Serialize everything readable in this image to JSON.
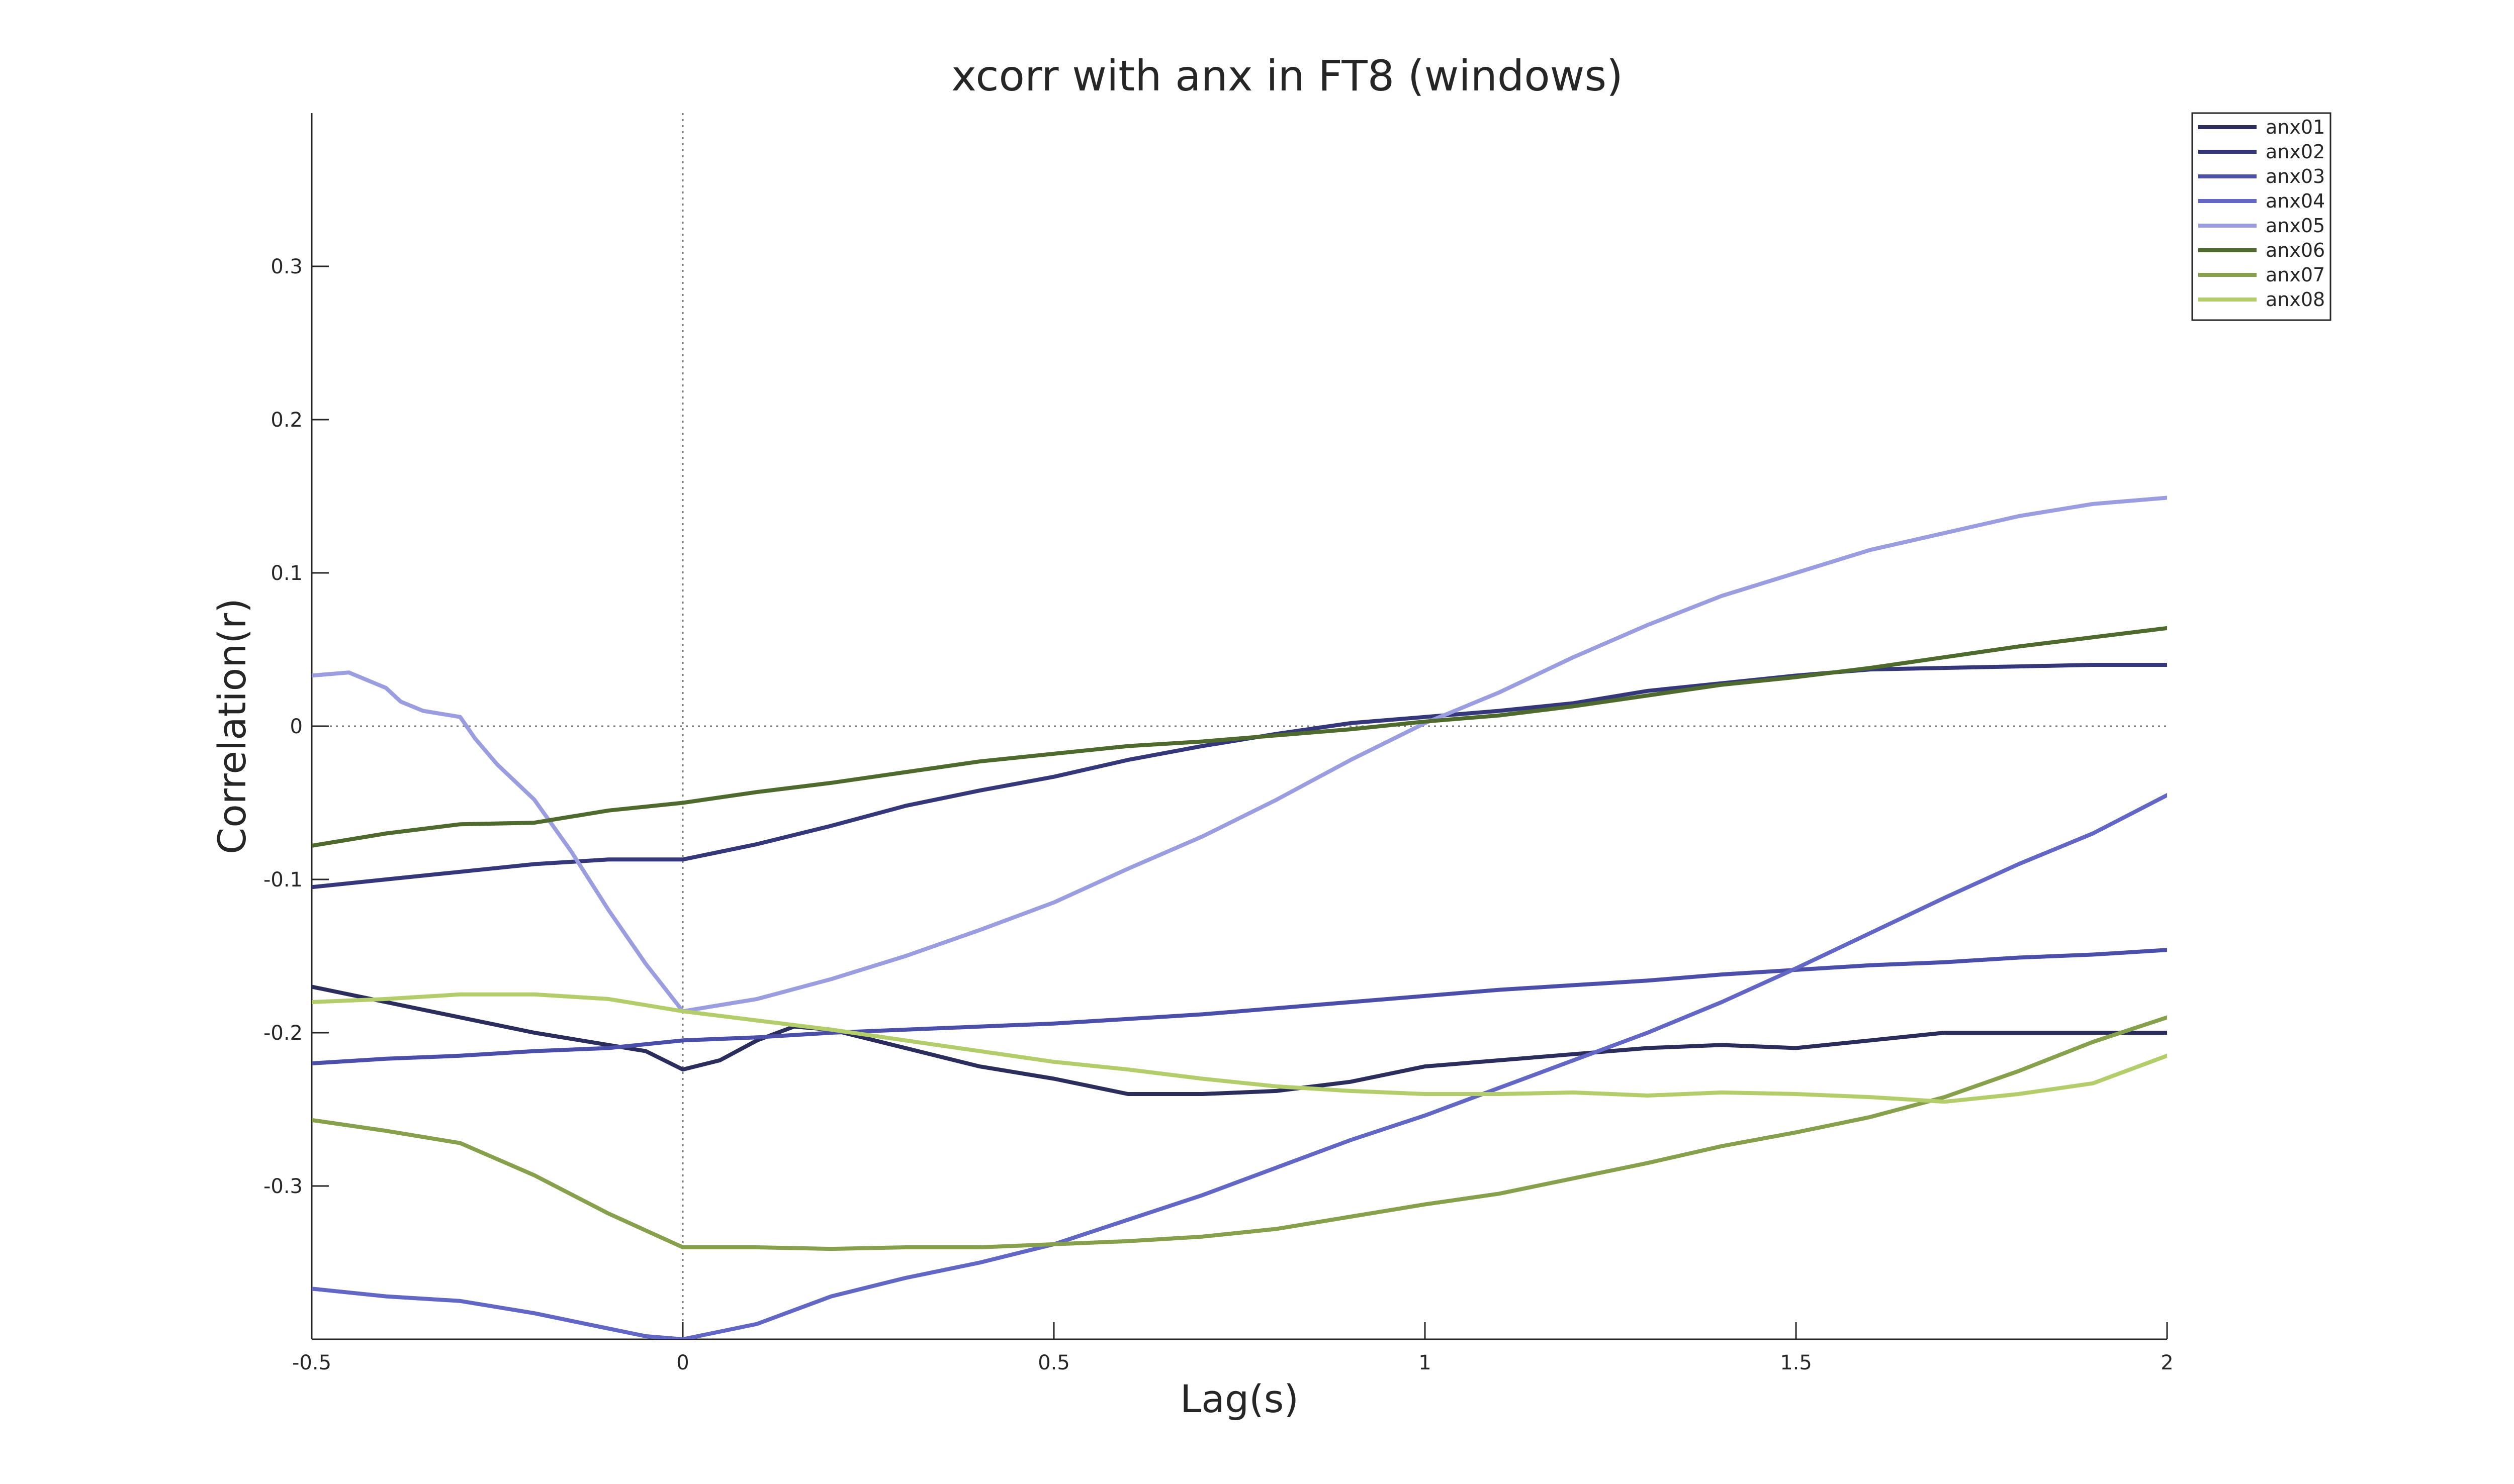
{
  "chart_data": {
    "type": "line",
    "title": "xcorr with anx in FT8 (windows)",
    "xlabel": "Lag(s)",
    "ylabel": "Correlation(r)",
    "xlim": [
      -0.5,
      2
    ],
    "ylim": [
      -0.4,
      0.4
    ],
    "xticks": [
      -0.5,
      0,
      0.5,
      1,
      1.5,
      2
    ],
    "xtick_labels": [
      "-0.5",
      "0",
      "0.5",
      "1",
      "1.5",
      "2"
    ],
    "yticks": [
      -0.3,
      -0.2,
      -0.1,
      0,
      0.1,
      0.2,
      0.3
    ],
    "ytick_labels": [
      "-0.3",
      "-0.2",
      "-0.1",
      "0",
      "0.1",
      "0.2",
      "0.3"
    ],
    "reference_lines": {
      "x": 0,
      "y": 0,
      "style": "dotted"
    },
    "grid": false,
    "legend_position": "top-right",
    "series": [
      {
        "name": "anx01",
        "color": "#2b2d5c",
        "points": [
          [
            -0.5,
            -0.17
          ],
          [
            -0.4,
            -0.18
          ],
          [
            -0.3,
            -0.19
          ],
          [
            -0.2,
            -0.2
          ],
          [
            -0.1,
            -0.208
          ],
          [
            -0.05,
            -0.212
          ],
          [
            0,
            -0.224
          ],
          [
            0.05,
            -0.218
          ],
          [
            0.1,
            -0.205
          ],
          [
            0.15,
            -0.196
          ],
          [
            0.2,
            -0.198
          ],
          [
            0.3,
            -0.21
          ],
          [
            0.4,
            -0.222
          ],
          [
            0.5,
            -0.23
          ],
          [
            0.6,
            -0.24
          ],
          [
            0.7,
            -0.24
          ],
          [
            0.8,
            -0.238
          ],
          [
            0.9,
            -0.232
          ],
          [
            1.0,
            -0.222
          ],
          [
            1.1,
            -0.218
          ],
          [
            1.2,
            -0.214
          ],
          [
            1.3,
            -0.21
          ],
          [
            1.4,
            -0.208
          ],
          [
            1.5,
            -0.21
          ],
          [
            1.6,
            -0.205
          ],
          [
            1.7,
            -0.2
          ],
          [
            1.8,
            -0.2
          ],
          [
            1.9,
            -0.2
          ],
          [
            2.0,
            -0.2
          ]
        ]
      },
      {
        "name": "anx02",
        "color": "#34387a",
        "points": [
          [
            -0.5,
            -0.105
          ],
          [
            -0.4,
            -0.1
          ],
          [
            -0.3,
            -0.095
          ],
          [
            -0.2,
            -0.09
          ],
          [
            -0.1,
            -0.087
          ],
          [
            0,
            -0.087
          ],
          [
            0.1,
            -0.077
          ],
          [
            0.2,
            -0.065
          ],
          [
            0.3,
            -0.052
          ],
          [
            0.4,
            -0.042
          ],
          [
            0.5,
            -0.033
          ],
          [
            0.6,
            -0.022
          ],
          [
            0.7,
            -0.013
          ],
          [
            0.8,
            -0.005
          ],
          [
            0.9,
            0.002
          ],
          [
            1.0,
            0.006
          ],
          [
            1.1,
            0.01
          ],
          [
            1.2,
            0.015
          ],
          [
            1.3,
            0.023
          ],
          [
            1.4,
            0.028
          ],
          [
            1.5,
            0.033
          ],
          [
            1.6,
            0.037
          ],
          [
            1.7,
            0.038
          ],
          [
            1.8,
            0.039
          ],
          [
            1.9,
            0.04
          ],
          [
            2.0,
            0.04
          ]
        ]
      },
      {
        "name": "anx03",
        "color": "#4b4faa",
        "points": [
          [
            -0.5,
            -0.22
          ],
          [
            -0.4,
            -0.217
          ],
          [
            -0.3,
            -0.215
          ],
          [
            -0.2,
            -0.212
          ],
          [
            -0.1,
            -0.21
          ],
          [
            0,
            -0.205
          ],
          [
            0.1,
            -0.203
          ],
          [
            0.2,
            -0.2
          ],
          [
            0.3,
            -0.198
          ],
          [
            0.4,
            -0.196
          ],
          [
            0.5,
            -0.194
          ],
          [
            0.6,
            -0.191
          ],
          [
            0.7,
            -0.188
          ],
          [
            0.8,
            -0.184
          ],
          [
            0.9,
            -0.18
          ],
          [
            1.0,
            -0.176
          ],
          [
            1.1,
            -0.172
          ],
          [
            1.2,
            -0.169
          ],
          [
            1.3,
            -0.166
          ],
          [
            1.4,
            -0.162
          ],
          [
            1.5,
            -0.159
          ],
          [
            1.6,
            -0.156
          ],
          [
            1.7,
            -0.154
          ],
          [
            1.8,
            -0.151
          ],
          [
            1.9,
            -0.149
          ],
          [
            2.0,
            -0.146
          ]
        ]
      },
      {
        "name": "anx04",
        "color": "#6266c4",
        "points": [
          [
            -0.5,
            -0.367
          ],
          [
            -0.4,
            -0.372
          ],
          [
            -0.3,
            -0.375
          ],
          [
            -0.2,
            -0.383
          ],
          [
            -0.1,
            -0.393
          ],
          [
            -0.05,
            -0.398
          ],
          [
            0,
            -0.4
          ],
          [
            0.1,
            -0.39
          ],
          [
            0.2,
            -0.372
          ],
          [
            0.3,
            -0.36
          ],
          [
            0.4,
            -0.35
          ],
          [
            0.5,
            -0.338
          ],
          [
            0.6,
            -0.322
          ],
          [
            0.7,
            -0.306
          ],
          [
            0.8,
            -0.288
          ],
          [
            0.9,
            -0.27
          ],
          [
            1.0,
            -0.254
          ],
          [
            1.1,
            -0.236
          ],
          [
            1.2,
            -0.218
          ],
          [
            1.3,
            -0.2
          ],
          [
            1.4,
            -0.18
          ],
          [
            1.5,
            -0.158
          ],
          [
            1.6,
            -0.135
          ],
          [
            1.7,
            -0.112
          ],
          [
            1.8,
            -0.09
          ],
          [
            1.9,
            -0.07
          ],
          [
            2.0,
            -0.045
          ]
        ]
      },
      {
        "name": "anx05",
        "color": "#9a9ee0",
        "points": [
          [
            -0.5,
            0.033
          ],
          [
            -0.45,
            0.035
          ],
          [
            -0.4,
            0.025
          ],
          [
            -0.38,
            0.016
          ],
          [
            -0.35,
            0.01
          ],
          [
            -0.3,
            0.006
          ],
          [
            -0.28,
            -0.008
          ],
          [
            -0.25,
            -0.025
          ],
          [
            -0.2,
            -0.048
          ],
          [
            -0.15,
            -0.082
          ],
          [
            -0.1,
            -0.12
          ],
          [
            -0.05,
            -0.155
          ],
          [
            0,
            -0.186
          ],
          [
            0.1,
            -0.178
          ],
          [
            0.2,
            -0.165
          ],
          [
            0.3,
            -0.15
          ],
          [
            0.4,
            -0.133
          ],
          [
            0.5,
            -0.115
          ],
          [
            0.6,
            -0.093
          ],
          [
            0.7,
            -0.072
          ],
          [
            0.8,
            -0.048
          ],
          [
            0.9,
            -0.022
          ],
          [
            1.0,
            0.002
          ],
          [
            1.1,
            0.022
          ],
          [
            1.2,
            0.045
          ],
          [
            1.3,
            0.066
          ],
          [
            1.4,
            0.085
          ],
          [
            1.5,
            0.1
          ],
          [
            1.6,
            0.115
          ],
          [
            1.7,
            0.126
          ],
          [
            1.8,
            0.137
          ],
          [
            1.9,
            0.145
          ],
          [
            2.0,
            0.149
          ]
        ]
      },
      {
        "name": "anx06",
        "color": "#4f6a2d",
        "points": [
          [
            -0.5,
            -0.078
          ],
          [
            -0.4,
            -0.07
          ],
          [
            -0.3,
            -0.064
          ],
          [
            -0.2,
            -0.063
          ],
          [
            -0.1,
            -0.055
          ],
          [
            0,
            -0.05
          ],
          [
            0.1,
            -0.043
          ],
          [
            0.2,
            -0.037
          ],
          [
            0.3,
            -0.03
          ],
          [
            0.4,
            -0.023
          ],
          [
            0.5,
            -0.018
          ],
          [
            0.6,
            -0.013
          ],
          [
            0.7,
            -0.01
          ],
          [
            0.8,
            -0.006
          ],
          [
            0.9,
            -0.002
          ],
          [
            1.0,
            0.003
          ],
          [
            1.1,
            0.007
          ],
          [
            1.2,
            0.013
          ],
          [
            1.3,
            0.02
          ],
          [
            1.4,
            0.027
          ],
          [
            1.5,
            0.032
          ],
          [
            1.6,
            0.038
          ],
          [
            1.7,
            0.045
          ],
          [
            1.8,
            0.052
          ],
          [
            1.9,
            0.058
          ],
          [
            2.0,
            0.064
          ]
        ]
      },
      {
        "name": "anx07",
        "color": "#86a04c",
        "points": [
          [
            -0.5,
            -0.257
          ],
          [
            -0.4,
            -0.264
          ],
          [
            -0.3,
            -0.272
          ],
          [
            -0.2,
            -0.293
          ],
          [
            -0.1,
            -0.318
          ],
          [
            0,
            -0.34
          ],
          [
            0.1,
            -0.34
          ],
          [
            0.2,
            -0.341
          ],
          [
            0.3,
            -0.34
          ],
          [
            0.4,
            -0.34
          ],
          [
            0.5,
            -0.338
          ],
          [
            0.6,
            -0.336
          ],
          [
            0.7,
            -0.333
          ],
          [
            0.8,
            -0.328
          ],
          [
            0.9,
            -0.32
          ],
          [
            1.0,
            -0.312
          ],
          [
            1.1,
            -0.305
          ],
          [
            1.2,
            -0.295
          ],
          [
            1.3,
            -0.285
          ],
          [
            1.4,
            -0.274
          ],
          [
            1.5,
            -0.265
          ],
          [
            1.6,
            -0.255
          ],
          [
            1.7,
            -0.242
          ],
          [
            1.8,
            -0.225
          ],
          [
            1.9,
            -0.206
          ],
          [
            2.0,
            -0.19
          ]
        ]
      },
      {
        "name": "anx08",
        "color": "#b3cd6a",
        "points": [
          [
            -0.5,
            -0.18
          ],
          [
            -0.4,
            -0.178
          ],
          [
            -0.3,
            -0.175
          ],
          [
            -0.2,
            -0.175
          ],
          [
            -0.1,
            -0.178
          ],
          [
            0,
            -0.186
          ],
          [
            0.1,
            -0.192
          ],
          [
            0.2,
            -0.198
          ],
          [
            0.3,
            -0.205
          ],
          [
            0.4,
            -0.212
          ],
          [
            0.5,
            -0.219
          ],
          [
            0.6,
            -0.224
          ],
          [
            0.7,
            -0.23
          ],
          [
            0.8,
            -0.235
          ],
          [
            0.9,
            -0.238
          ],
          [
            1.0,
            -0.24
          ],
          [
            1.1,
            -0.24
          ],
          [
            1.2,
            -0.239
          ],
          [
            1.3,
            -0.241
          ],
          [
            1.4,
            -0.239
          ],
          [
            1.5,
            -0.24
          ],
          [
            1.6,
            -0.242
          ],
          [
            1.7,
            -0.245
          ],
          [
            1.8,
            -0.24
          ],
          [
            1.9,
            -0.233
          ],
          [
            2.0,
            -0.215
          ]
        ]
      }
    ]
  }
}
